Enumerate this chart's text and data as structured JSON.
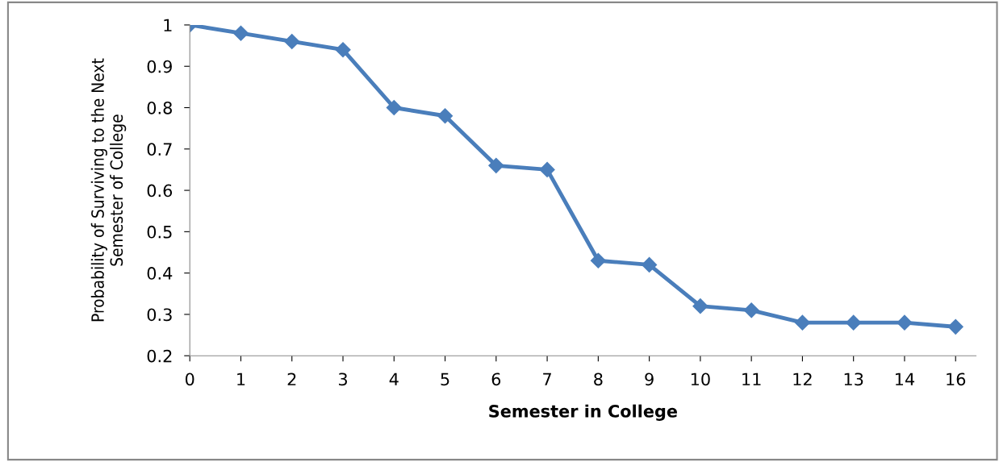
{
  "chart_data": {
    "type": "line",
    "xlabel": "Semester in College",
    "ylabel": "Probability of Surviving to the Next\nSemester of College",
    "categories": [
      "0",
      "1",
      "2",
      "3",
      "4",
      "5",
      "6",
      "7",
      "8",
      "9",
      "10",
      "11",
      "12",
      "13",
      "14",
      "16"
    ],
    "series": [
      {
        "color": "#4a7ebb",
        "values": [
          1.0,
          0.98,
          0.96,
          0.94,
          0.8,
          0.78,
          0.66,
          0.65,
          0.43,
          0.42,
          0.32,
          0.31,
          0.28,
          0.28,
          0.28,
          0.27
        ]
      }
    ],
    "ylim": [
      0.2,
      1
    ],
    "yticks": [
      0.2,
      0.3,
      0.4,
      0.5,
      0.6,
      0.7,
      0.8,
      0.9,
      1
    ],
    "grid": false,
    "legend": false,
    "marker": "diamond",
    "line_style": "solid"
  }
}
